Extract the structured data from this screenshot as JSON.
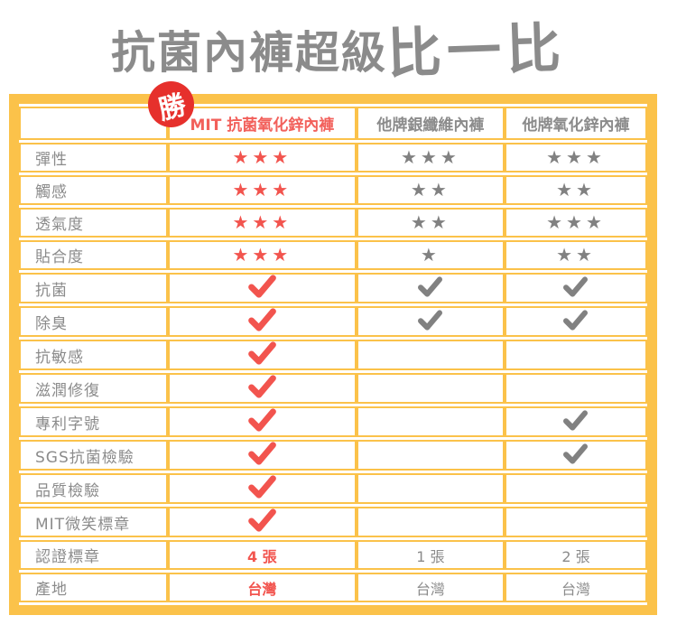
{
  "title": {
    "part1": "抗菌內褲超級",
    "part2": "比一比"
  },
  "badge": {
    "label": "勝"
  },
  "icons": {
    "star_glyph": "★",
    "check_name": "check-icon",
    "star_name": "star-rating",
    "badge_name": "win-badge"
  },
  "colors": {
    "border_yellow": "#FBC24A",
    "red": "#F2544E",
    "header_red": "#F2605B",
    "badge_red": "#E6302C",
    "gray": "#8B8B8B",
    "gray_dark": "#818181"
  },
  "table": {
    "columns": [
      {
        "label": "",
        "highlight": false
      },
      {
        "label": "MIT 抗菌氧化鋅內褲",
        "highlight": true
      },
      {
        "label": "他牌銀纖維內褲",
        "highlight": false
      },
      {
        "label": "他牌氧化鋅內褲",
        "highlight": false
      }
    ],
    "rows": [
      {
        "label": "彈性",
        "cells": [
          {
            "type": "stars",
            "count": 3,
            "tone": "red"
          },
          {
            "type": "stars",
            "count": 3,
            "tone": "gray"
          },
          {
            "type": "stars",
            "count": 3,
            "tone": "gray"
          }
        ]
      },
      {
        "label": "觸感",
        "cells": [
          {
            "type": "stars",
            "count": 3,
            "tone": "red"
          },
          {
            "type": "stars",
            "count": 2,
            "tone": "gray"
          },
          {
            "type": "stars",
            "count": 2,
            "tone": "gray"
          }
        ]
      },
      {
        "label": "透氣度",
        "cells": [
          {
            "type": "stars",
            "count": 3,
            "tone": "red"
          },
          {
            "type": "stars",
            "count": 2,
            "tone": "gray"
          },
          {
            "type": "stars",
            "count": 3,
            "tone": "gray"
          }
        ]
      },
      {
        "label": "貼合度",
        "cells": [
          {
            "type": "stars",
            "count": 3,
            "tone": "red"
          },
          {
            "type": "stars",
            "count": 1,
            "tone": "gray"
          },
          {
            "type": "stars",
            "count": 2,
            "tone": "gray"
          }
        ]
      },
      {
        "label": "抗菌",
        "cells": [
          {
            "type": "check",
            "tone": "red"
          },
          {
            "type": "check",
            "tone": "gray"
          },
          {
            "type": "check",
            "tone": "gray"
          }
        ]
      },
      {
        "label": "除臭",
        "cells": [
          {
            "type": "check",
            "tone": "red"
          },
          {
            "type": "check",
            "tone": "gray"
          },
          {
            "type": "check",
            "tone": "gray"
          }
        ]
      },
      {
        "label": "抗敏感",
        "cells": [
          {
            "type": "check",
            "tone": "red"
          },
          {
            "type": "empty"
          },
          {
            "type": "empty"
          }
        ]
      },
      {
        "label": "滋潤修復",
        "cells": [
          {
            "type": "check",
            "tone": "red"
          },
          {
            "type": "empty"
          },
          {
            "type": "empty"
          }
        ]
      },
      {
        "label": "專利字號",
        "cells": [
          {
            "type": "check",
            "tone": "red"
          },
          {
            "type": "empty"
          },
          {
            "type": "check",
            "tone": "gray"
          }
        ]
      },
      {
        "label": "SGS抗菌檢驗",
        "cells": [
          {
            "type": "check",
            "tone": "red"
          },
          {
            "type": "empty"
          },
          {
            "type": "check",
            "tone": "gray"
          }
        ]
      },
      {
        "label": "品質檢驗",
        "cells": [
          {
            "type": "check",
            "tone": "red"
          },
          {
            "type": "empty"
          },
          {
            "type": "empty"
          }
        ]
      },
      {
        "label": "MIT微笑標章",
        "cells": [
          {
            "type": "check",
            "tone": "red"
          },
          {
            "type": "empty"
          },
          {
            "type": "empty"
          }
        ]
      },
      {
        "label": "認證標章",
        "cells": [
          {
            "type": "text",
            "value": "4 張",
            "tone": "red"
          },
          {
            "type": "text",
            "value": "1 張",
            "tone": "gray"
          },
          {
            "type": "text",
            "value": "2 張",
            "tone": "gray"
          }
        ]
      },
      {
        "label": "產地",
        "cells": [
          {
            "type": "text",
            "value": "台灣",
            "tone": "red"
          },
          {
            "type": "text",
            "value": "台灣",
            "tone": "gray"
          },
          {
            "type": "text",
            "value": "台灣",
            "tone": "gray"
          }
        ]
      }
    ]
  }
}
